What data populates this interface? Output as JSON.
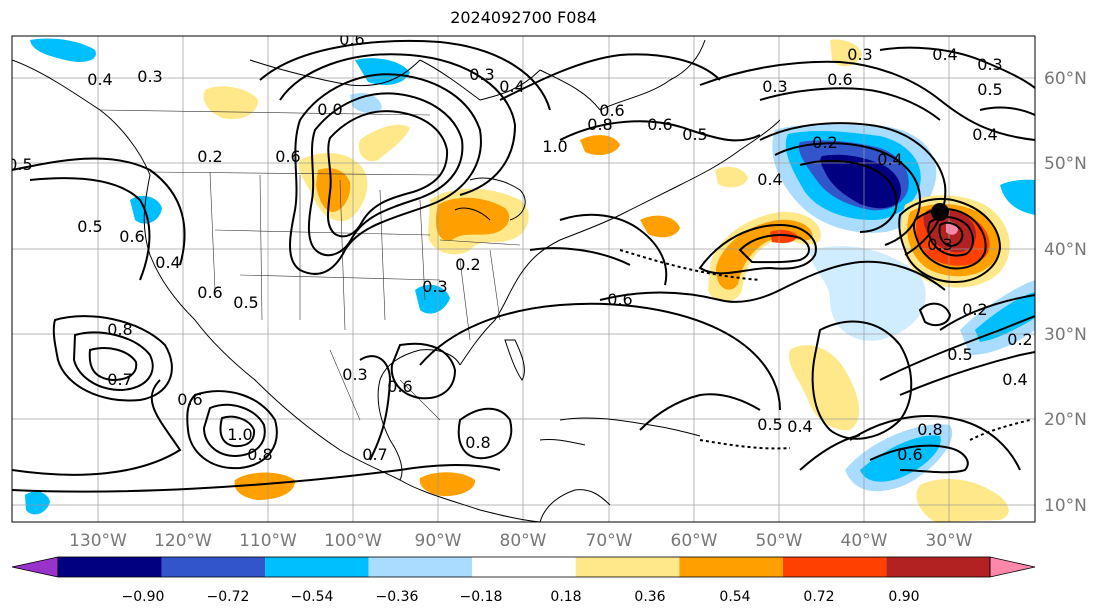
{
  "title": "2024092700 F084",
  "map": {
    "lon_range": [
      -140,
      -22
    ],
    "lat_range": [
      8,
      65
    ],
    "lon_ticks": [
      "130°W",
      "120°W",
      "110°W",
      "100°W",
      "90°W",
      "80°W",
      "70°W",
      "60°W",
      "50°W",
      "40°W",
      "30°W"
    ],
    "lat_ticks": [
      "10°N",
      "20°N",
      "30°N",
      "40°N",
      "50°N",
      "60°N"
    ],
    "contour_labels": [
      "0.6",
      "0.4",
      "0.3",
      "0.3",
      "0.4",
      "0.6",
      "0.2",
      "0.6",
      "0.5",
      "0.5",
      "0.6",
      "0.4",
      "0.6",
      "0.5",
      "0.8",
      "0.7",
      "0.6",
      "1.0",
      "0.8",
      "0.3",
      "0.6",
      "0.7",
      "0.8",
      "0.6",
      "0.5",
      "0.4",
      "0.8",
      "0.6",
      "0.3",
      "0.4",
      "0.3",
      "0.5",
      "0.4",
      "0.3",
      "0.2",
      "0.4",
      "0.4",
      "0.3",
      "0.2",
      "0.2",
      "0.4",
      "0.5",
      "0.6",
      "1.0",
      "0.8",
      "0.6",
      "0.5",
      "0.3",
      "0.2",
      "0.0"
    ]
  },
  "colorbar": {
    "tick_labels": [
      "−0.90",
      "−0.72",
      "−0.54",
      "−0.36",
      "−0.18",
      "0.18",
      "0.36",
      "0.54",
      "0.72",
      "0.90"
    ],
    "colors": [
      "#9932cc",
      "#000080",
      "#3355cc",
      "#00bfff",
      "#aadcff",
      "#ffffff",
      "#ffe88a",
      "#ffa000",
      "#ff4000",
      "#b22222",
      "#ff88aa"
    ]
  }
}
